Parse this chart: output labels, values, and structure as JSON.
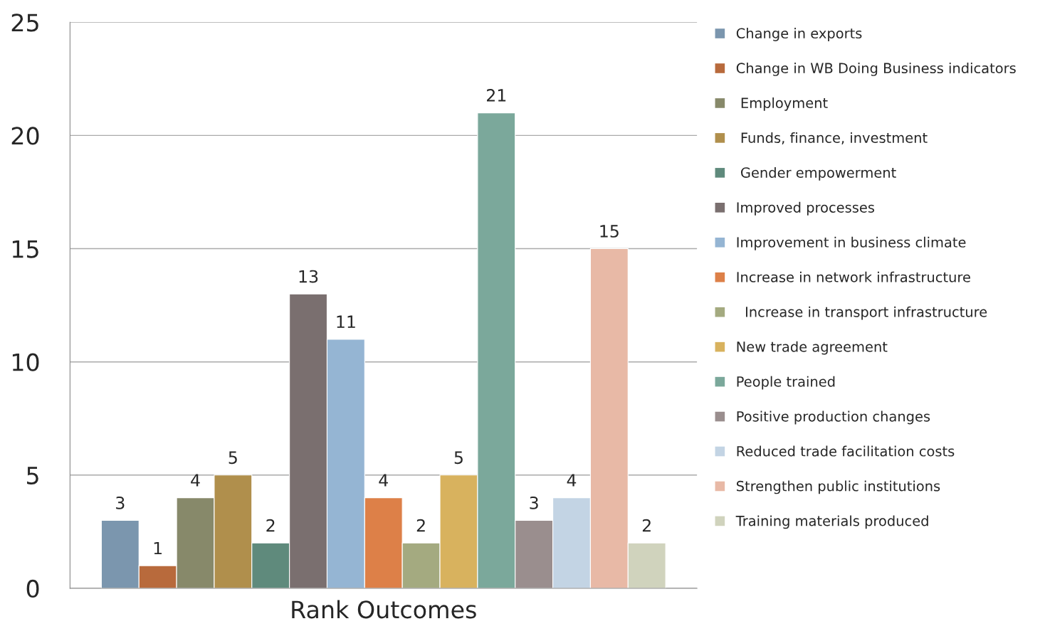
{
  "chart_data": {
    "type": "bar",
    "categories": [
      "Rank Outcomes"
    ],
    "series": [
      {
        "name": "Change in exports",
        "color": "#7b96ae",
        "values": [
          3
        ]
      },
      {
        "name": "Change in WB Doing Business indicators",
        "color": "#b86a3c",
        "values": [
          1
        ]
      },
      {
        "name": " Employment",
        "color": "#87896a",
        "values": [
          4
        ]
      },
      {
        "name": " Funds, finance, investment",
        "color": "#b08f4c",
        "values": [
          5
        ]
      },
      {
        "name": " Gender empowerment",
        "color": "#5f8a7c",
        "values": [
          2
        ]
      },
      {
        "name": "Improved processes",
        "color": "#7a6f6f",
        "values": [
          13
        ]
      },
      {
        "name": "Improvement in business climate",
        "color": "#95b5d3",
        "values": [
          11
        ]
      },
      {
        "name": "Increase in network infrastructure",
        "color": "#dd8048",
        "values": [
          4
        ]
      },
      {
        "name": "  Increase in transport infrastructure",
        "color": "#a4aa80",
        "values": [
          2
        ]
      },
      {
        "name": "New trade agreement",
        "color": "#d8b25e",
        "values": [
          5
        ]
      },
      {
        "name": "People trained",
        "color": "#7ba89b",
        "values": [
          21
        ]
      },
      {
        "name": "Positive production changes",
        "color": "#9a8e8e",
        "values": [
          3
        ]
      },
      {
        "name": "Reduced trade facilitation costs",
        "color": "#c3d4e4",
        "values": [
          4
        ]
      },
      {
        "name": "Strengthen public institutions",
        "color": "#e8b9a6",
        "values": [
          15
        ]
      },
      {
        "name": "Training materials produced",
        "color": "#d0d3bd",
        "values": [
          2
        ]
      }
    ],
    "ylim": [
      0,
      25
    ],
    "yticks": [
      0,
      5,
      10,
      15,
      20,
      25
    ],
    "grid": "y",
    "legend": "right",
    "data_labels": true
  }
}
